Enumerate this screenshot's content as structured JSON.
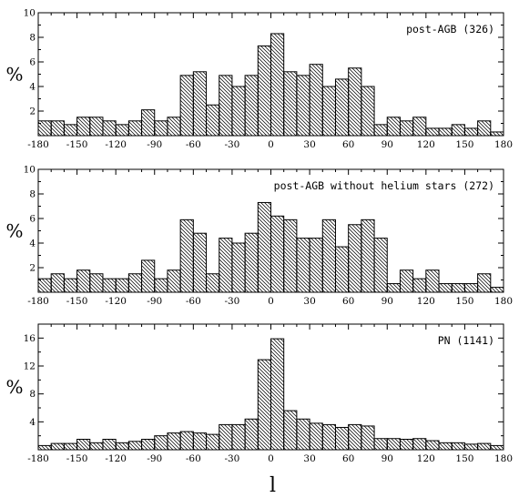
{
  "chart_data": [
    {
      "type": "bar",
      "title": "post-AGB (326)",
      "xlabel": "",
      "ylabel": "%",
      "xlim": [
        -180,
        180
      ],
      "ylim": [
        0,
        10
      ],
      "bin_width": 10,
      "x": [
        -175,
        -165,
        -155,
        -145,
        -135,
        -125,
        -115,
        -105,
        -95,
        -85,
        -75,
        -65,
        -55,
        -45,
        -35,
        -25,
        -15,
        -5,
        5,
        15,
        25,
        35,
        45,
        55,
        65,
        75,
        85,
        95,
        105,
        115,
        125,
        135,
        145,
        155,
        165,
        175
      ],
      "values": [
        1.2,
        1.2,
        0.9,
        1.5,
        1.5,
        1.2,
        0.9,
        1.2,
        2.1,
        1.2,
        1.5,
        4.9,
        5.2,
        2.5,
        4.9,
        4.0,
        4.9,
        7.3,
        8.3,
        5.2,
        4.9,
        5.8,
        4.0,
        4.6,
        5.5,
        4.0,
        0.9,
        1.5,
        1.2,
        1.5,
        0.6,
        0.6,
        0.9,
        0.6,
        1.2,
        0.3
      ],
      "xticks": [
        -180,
        -150,
        -120,
        -90,
        -60,
        -30,
        0,
        30,
        60,
        90,
        120,
        150,
        180
      ],
      "yticks": [
        2,
        4,
        6,
        8,
        10
      ],
      "legend": "top-right"
    },
    {
      "type": "bar",
      "title": "post-AGB without helium stars (272)",
      "xlabel": "",
      "ylabel": "%",
      "xlim": [
        -180,
        180
      ],
      "ylim": [
        0,
        10
      ],
      "bin_width": 10,
      "x": [
        -175,
        -165,
        -155,
        -145,
        -135,
        -125,
        -115,
        -105,
        -95,
        -85,
        -75,
        -65,
        -55,
        -45,
        -35,
        -25,
        -15,
        -5,
        5,
        15,
        25,
        35,
        45,
        55,
        65,
        75,
        85,
        95,
        105,
        115,
        125,
        135,
        145,
        155,
        165,
        175
      ],
      "values": [
        1.1,
        1.5,
        1.1,
        1.8,
        1.5,
        1.1,
        1.1,
        1.5,
        2.6,
        1.1,
        1.8,
        5.9,
        4.8,
        1.5,
        4.4,
        4.0,
        4.8,
        7.3,
        6.2,
        5.9,
        4.4,
        4.4,
        5.9,
        3.7,
        5.5,
        5.9,
        4.4,
        0.7,
        1.8,
        1.1,
        1.8,
        0.7,
        0.7,
        0.7,
        1.5,
        0.4
      ],
      "xticks": [
        -180,
        -150,
        -120,
        -90,
        -60,
        -30,
        0,
        30,
        60,
        90,
        120,
        150,
        180
      ],
      "yticks": [
        2,
        4,
        6,
        8,
        10
      ],
      "legend": "top-right"
    },
    {
      "type": "bar",
      "title": "PN (1141)",
      "xlabel": "l",
      "ylabel": "%",
      "xlim": [
        -180,
        180
      ],
      "ylim": [
        0,
        18
      ],
      "bin_width": 10,
      "x": [
        -175,
        -165,
        -155,
        -145,
        -135,
        -125,
        -115,
        -105,
        -95,
        -85,
        -75,
        -65,
        -55,
        -45,
        -35,
        -25,
        -15,
        -5,
        5,
        15,
        25,
        35,
        45,
        55,
        65,
        75,
        85,
        95,
        105,
        115,
        125,
        135,
        145,
        155,
        165,
        175
      ],
      "values": [
        0.6,
        0.9,
        0.9,
        1.5,
        1.0,
        1.5,
        1.0,
        1.2,
        1.5,
        2.0,
        2.4,
        2.6,
        2.4,
        2.2,
        3.6,
        3.6,
        4.4,
        12.9,
        15.9,
        5.6,
        4.4,
        3.8,
        3.6,
        3.2,
        3.6,
        3.4,
        1.6,
        1.6,
        1.5,
        1.6,
        1.3,
        1.0,
        1.0,
        0.8,
        0.9,
        0.6
      ],
      "xticks": [
        -180,
        -150,
        -120,
        -90,
        -60,
        -30,
        0,
        30,
        60,
        90,
        120,
        150,
        180
      ],
      "yticks": [
        4,
        8,
        12,
        16
      ],
      "legend": "top-right"
    }
  ]
}
